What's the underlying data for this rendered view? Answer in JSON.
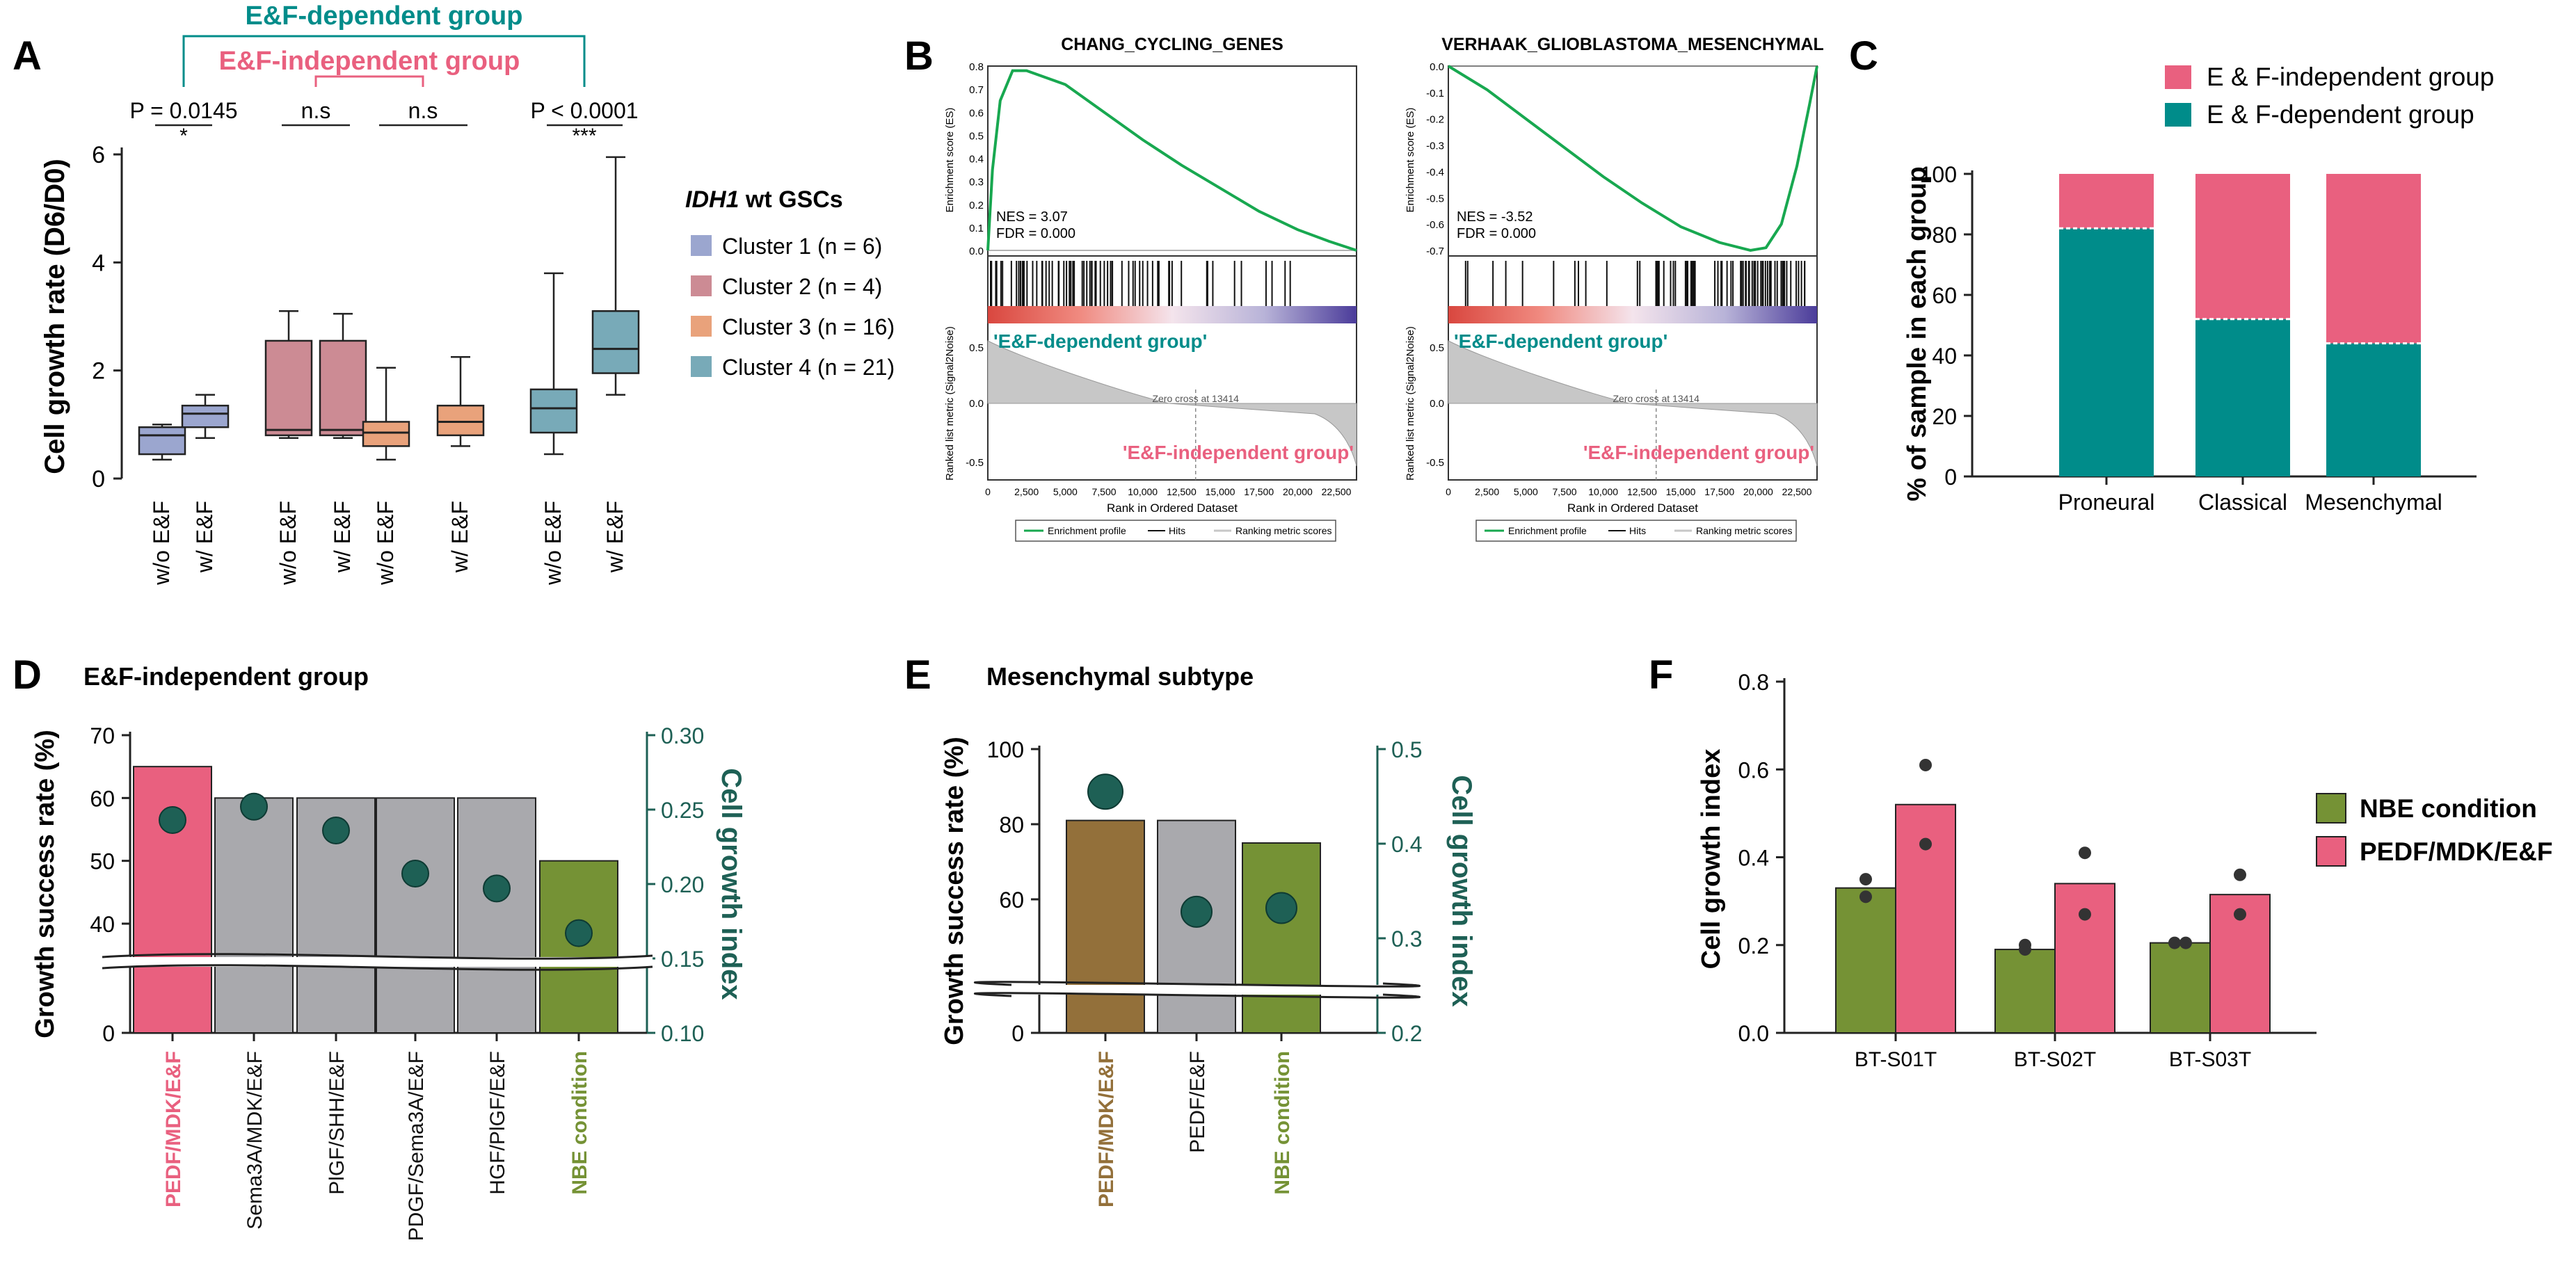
{
  "colors": {
    "c1": "#9ba6cf",
    "c2": "#cc8b94",
    "c3": "#e9a27b",
    "c4": "#78aab8",
    "teal": "#008c8a",
    "pink": "#e9607f",
    "gray": "#a9a9ad",
    "olive": "#759235",
    "brown": "#93703a",
    "dot": "#1e6055",
    "gsea_green": "#18a850",
    "dark": "#111111"
  },
  "panels": {
    "A": {
      "letter": "A"
    },
    "B": {
      "letter": "B"
    },
    "C": {
      "letter": "C"
    },
    "D": {
      "letter": "D"
    },
    "E": {
      "letter": "E"
    },
    "F": {
      "letter": "F"
    }
  },
  "chart_data": [
    {
      "id": "A",
      "type": "box",
      "ylabel": "Cell growth rate (D6/D0)",
      "ylim": [
        0,
        6
      ],
      "yticks": [
        "0",
        "2",
        "4",
        "6"
      ],
      "group_labels": {
        "dependent": "E&F-dependent group",
        "independent": "E&F-independent group"
      },
      "legend_title_italic": "IDH1",
      "legend_title_rest": " wt GSCs",
      "clusters": [
        {
          "name": "Cluster 1 (n = 6)",
          "color": "#9ba6cf"
        },
        {
          "name": "Cluster 2 (n = 4)",
          "color": "#cc8b94"
        },
        {
          "name": "Cluster 3 (n = 16)",
          "color": "#e9a27b"
        },
        {
          "name": "Cluster 4 (n = 21)",
          "color": "#78aab8"
        }
      ],
      "boxes": [
        {
          "label": "w/o E&F",
          "cluster": 0,
          "min": 0.35,
          "q1": 0.45,
          "median": 0.8,
          "q3": 0.95,
          "max": 1.0
        },
        {
          "label": "w/ E&F",
          "cluster": 0,
          "min": 0.75,
          "q1": 0.95,
          "median": 1.2,
          "q3": 1.35,
          "max": 1.55
        },
        {
          "label": "w/o E&F",
          "cluster": 1,
          "min": 0.75,
          "q1": 0.8,
          "median": 0.9,
          "q3": 2.55,
          "max": 3.1
        },
        {
          "label": "w/ E&F",
          "cluster": 1,
          "min": 0.75,
          "q1": 0.8,
          "median": 0.9,
          "q3": 2.55,
          "max": 3.05
        },
        {
          "label": "w/o E&F",
          "cluster": 2,
          "min": 0.35,
          "q1": 0.6,
          "median": 0.85,
          "q3": 1.05,
          "max": 2.05
        },
        {
          "label": "w/ E&F",
          "cluster": 2,
          "min": 0.6,
          "q1": 0.8,
          "median": 1.05,
          "q3": 1.35,
          "max": 2.25
        },
        {
          "label": "w/o E&F",
          "cluster": 3,
          "min": 0.45,
          "q1": 0.85,
          "median": 1.3,
          "q3": 1.65,
          "max": 3.8
        },
        {
          "label": "w/ E&F",
          "cluster": 3,
          "min": 1.55,
          "q1": 1.95,
          "median": 2.4,
          "q3": 3.1,
          "max": 5.95
        }
      ],
      "annotations": [
        {
          "p": "P = 0.0145",
          "star": "*"
        },
        {
          "p": "n.s",
          "star": ""
        },
        {
          "p": "n.s",
          "star": ""
        },
        {
          "p": "P < 0.0001",
          "star": "***"
        }
      ]
    },
    {
      "id": "B",
      "type": "gsea",
      "plots": [
        {
          "title": "CHANG_CYCLING_GENES",
          "ylim": [
            0,
            0.8
          ],
          "yticks": [
            "0.8",
            "0.7",
            "0.6",
            "0.5",
            "0.4",
            "0.3",
            "0.2",
            "0.1",
            "0.0"
          ],
          "nes": "NES = 3.07",
          "fdr": "FDR = 0.000",
          "es_curve": [
            [
              0,
              0
            ],
            [
              300,
              0.35
            ],
            [
              800,
              0.65
            ],
            [
              1600,
              0.78
            ],
            [
              2500,
              0.78
            ],
            [
              5000,
              0.72
            ],
            [
              7500,
              0.6
            ],
            [
              10000,
              0.48
            ],
            [
              12500,
              0.37
            ],
            [
              15000,
              0.27
            ],
            [
              17500,
              0.17
            ],
            [
              20000,
              0.09
            ],
            [
              22000,
              0.04
            ],
            [
              23800,
              0.0
            ]
          ],
          "direction": "pos"
        },
        {
          "title": "VERHAAK_GLIOBLASTOMA_MESENCHYMAL",
          "ylim": [
            -0.7,
            0
          ],
          "yticks": [
            "0.0",
            "-0.1",
            "-0.2",
            "-0.3",
            "-0.4",
            "-0.5",
            "-0.6",
            "-0.7"
          ],
          "nes": "NES = -3.52",
          "fdr": "FDR = 0.000",
          "es_curve": [
            [
              0,
              0
            ],
            [
              2500,
              -0.09
            ],
            [
              5000,
              -0.2
            ],
            [
              7500,
              -0.31
            ],
            [
              10000,
              -0.42
            ],
            [
              12500,
              -0.52
            ],
            [
              15000,
              -0.61
            ],
            [
              17500,
              -0.67
            ],
            [
              19500,
              -0.7
            ],
            [
              20500,
              -0.69
            ],
            [
              21500,
              -0.6
            ],
            [
              22500,
              -0.38
            ],
            [
              23300,
              -0.15
            ],
            [
              23800,
              0.0
            ]
          ],
          "direction": "neg"
        }
      ],
      "xticks": [
        "0",
        "2,500",
        "5,000",
        "7,500",
        "10,000",
        "12,500",
        "15,000",
        "17,500",
        "20,000",
        "22,500"
      ],
      "xlabel": "Rank in Ordered Dataset",
      "ylabel_es": "Enrichment score (ES)",
      "ylabel_rank": "Ranked list metric (Signal2Noise)",
      "rank_yticks": [
        "0.5",
        "0.0",
        "-0.5"
      ],
      "dep_label": "'E&F-dependent group'",
      "indep_label": "'E&F-independent group'",
      "zero_cross": "Zero cross at 13414",
      "legend": [
        "Enrichment profile",
        "Hits",
        "Ranking metric scores"
      ]
    },
    {
      "id": "C",
      "type": "stacked_bar",
      "ylabel": "% of sample in each group",
      "ylim": [
        0,
        100
      ],
      "yticks": [
        "0",
        "20",
        "40",
        "60",
        "80",
        "100"
      ],
      "categories": [
        "Proneural",
        "Classical",
        "Mesenchymal"
      ],
      "series": [
        {
          "name": "E & F-dependent group",
          "color": "#008c8a",
          "values": [
            82,
            52,
            44
          ]
        },
        {
          "name": "E & F-independent group",
          "color": "#e9607f",
          "values": [
            18,
            48,
            56
          ]
        }
      ]
    },
    {
      "id": "D",
      "type": "bar_dual_axis",
      "title": "E&F-independent group",
      "ylabel_left": "Growth success rate (%)",
      "ylabel_right": "Cell growth index",
      "left_yticks": [
        "0",
        "40",
        "50",
        "60",
        "70"
      ],
      "right_yticks": [
        "0.10",
        "0.15",
        "0.20",
        "0.25",
        "0.30"
      ],
      "categories": [
        "PEDF/MDK/E&F",
        "Sema3A/MDK/E&F",
        "PlGF/SHH/E&F",
        "PDGF/Sema3A/E&F",
        "HGF/PlGF/E&F",
        "NBE condition"
      ],
      "bar_values": [
        65,
        60,
        60,
        60,
        60,
        50
      ],
      "bar_colors": [
        "#e9607f",
        "#a9a9ad",
        "#a9a9ad",
        "#a9a9ad",
        "#a9a9ad",
        "#759235"
      ],
      "label_colors": [
        "#e9607f",
        "#111111",
        "#111111",
        "#111111",
        "#111111",
        "#759235"
      ],
      "dot_values": [
        0.243,
        0.252,
        0.236,
        0.207,
        0.197,
        0.167
      ]
    },
    {
      "id": "E",
      "type": "bar_dual_axis",
      "title": "Mesenchymal subtype",
      "ylabel_left": "Growth success rate (%)",
      "ylabel_right": "Cell growth index",
      "left_yticks": [
        "0",
        "60",
        "80",
        "100"
      ],
      "right_yticks": [
        "0.2",
        "0.3",
        "0.4",
        "0.5"
      ],
      "categories": [
        "PEDF/MDK/E&F",
        "PEDF/E&F",
        "NBE condition"
      ],
      "bar_values": [
        81,
        81,
        75
      ],
      "bar_colors": [
        "#93703a",
        "#a9a9ad",
        "#759235"
      ],
      "label_colors": [
        "#93703a",
        "#111111",
        "#759235"
      ],
      "dot_values": [
        0.455,
        0.328,
        0.332
      ]
    },
    {
      "id": "F",
      "type": "grouped_bar",
      "ylabel": "Cell growth index",
      "ylim": [
        0,
        0.8
      ],
      "yticks": [
        "0.0",
        "0.2",
        "0.4",
        "0.6",
        "0.8"
      ],
      "categories": [
        "BT-S01T",
        "BT-S02T",
        "BT-S03T"
      ],
      "series": [
        {
          "name": "NBE condition",
          "color": "#759235",
          "values": [
            0.33,
            0.19,
            0.205
          ],
          "points": [
            [
              0.35,
              0.31
            ],
            [
              0.19,
              0.2
            ],
            [
              0.205,
              0.205
            ]
          ]
        },
        {
          "name": "PEDF/MDK/E&F",
          "color": "#e9607f",
          "values": [
            0.52,
            0.34,
            0.315
          ],
          "points": [
            [
              0.61,
              0.43
            ],
            [
              0.41,
              0.27
            ],
            [
              0.36,
              0.27
            ]
          ]
        }
      ]
    }
  ]
}
